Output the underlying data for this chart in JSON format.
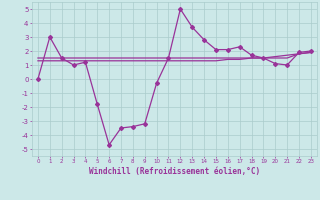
{
  "xlabel": "Windchill (Refroidissement éolien,°C)",
  "x": [
    0,
    1,
    2,
    3,
    4,
    5,
    6,
    7,
    8,
    9,
    10,
    11,
    12,
    13,
    14,
    15,
    16,
    17,
    18,
    19,
    20,
    21,
    22,
    23
  ],
  "y_main": [
    0.0,
    3.0,
    1.5,
    1.0,
    1.2,
    -1.8,
    -4.7,
    -3.5,
    -3.4,
    -3.2,
    -0.3,
    1.5,
    5.0,
    3.7,
    2.8,
    2.1,
    2.1,
    2.3,
    1.7,
    1.5,
    1.1,
    1.0,
    1.9,
    2.0
  ],
  "y_trend1": [
    1.5,
    1.5,
    1.5,
    1.5,
    1.5,
    1.5,
    1.5,
    1.5,
    1.5,
    1.5,
    1.5,
    1.5,
    1.5,
    1.5,
    1.5,
    1.5,
    1.5,
    1.5,
    1.5,
    1.5,
    1.5,
    1.5,
    1.8,
    1.9
  ],
  "y_trend2": [
    1.3,
    1.3,
    1.3,
    1.3,
    1.3,
    1.3,
    1.3,
    1.3,
    1.3,
    1.3,
    1.3,
    1.3,
    1.3,
    1.3,
    1.3,
    1.3,
    1.4,
    1.4,
    1.5,
    1.5,
    1.6,
    1.7,
    1.8,
    1.9
  ],
  "ylim": [
    -5.5,
    5.5
  ],
  "xlim": [
    -0.5,
    23.5
  ],
  "yticks": [
    -5,
    -4,
    -3,
    -2,
    -1,
    0,
    1,
    2,
    3,
    4,
    5
  ],
  "line_color": "#993399",
  "bg_color": "#cce8e8",
  "grid_color": "#aacccc",
  "marker": "D",
  "marker_size": 2,
  "line_width": 0.9
}
